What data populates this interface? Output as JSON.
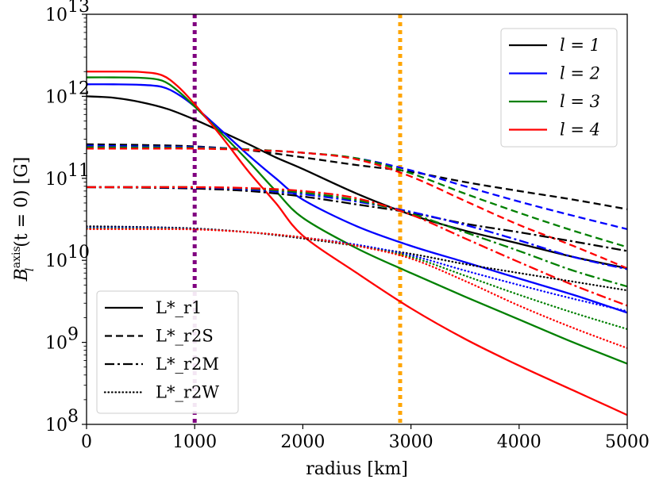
{
  "chart_data": {
    "type": "line",
    "title": "",
    "xlabel": "radius [km]",
    "ylabel": "B_l^axis(t = 0) [G]",
    "ylabel_parts": {
      "base": "B",
      "sub": "l",
      "sup": "axis",
      "rest": "(t = 0) [G]"
    },
    "xscale": "linear",
    "yscale": "log",
    "xlim": [
      0,
      5000
    ],
    "ylim": [
      100000000.0,
      10000000000000.0
    ],
    "x_ticks": [
      0,
      1000,
      2000,
      3000,
      4000,
      5000
    ],
    "x_tick_labels": [
      "0",
      "1000",
      "2000",
      "3000",
      "4000",
      "5000"
    ],
    "y_ticks": [
      8,
      9,
      10,
      11,
      12,
      13
    ],
    "y_tick_labels": [
      {
        "base": "10",
        "exp": "8"
      },
      {
        "base": "10",
        "exp": "9"
      },
      {
        "base": "10",
        "exp": "10"
      },
      {
        "base": "10",
        "exp": "11"
      },
      {
        "base": "10",
        "exp": "12"
      },
      {
        "base": "10",
        "exp": "13"
      }
    ],
    "vlines": [
      {
        "x": 1000,
        "color": "#800080",
        "style": "dotted"
      },
      {
        "x": 2900,
        "color": "#ffa500",
        "style": "dotted"
      }
    ],
    "legend_l": {
      "position": "upper right",
      "entries": [
        {
          "label": "l = 1",
          "color": "#000000"
        },
        {
          "label": "l = 2",
          "color": "#0000ff"
        },
        {
          "label": "l = 3",
          "color": "#008000"
        },
        {
          "label": "l = 4",
          "color": "#ff0000"
        }
      ]
    },
    "legend_models": {
      "position": "lower left",
      "entries": [
        {
          "label": "L*_r1",
          "style": "solid"
        },
        {
          "label": "L*_r2S",
          "style": "dashed"
        },
        {
          "label": "L*_r2M",
          "style": "dashdot"
        },
        {
          "label": "L*_r2W",
          "style": "dotted"
        }
      ]
    },
    "series": [
      {
        "name": "L*_r1 l=1",
        "model": "L*_r1",
        "l": 1,
        "color": "#000000",
        "style": "solid",
        "x": [
          0,
          250,
          500,
          750,
          1000,
          1250,
          1500,
          1750,
          2000,
          2500,
          3000,
          3500,
          4000,
          4500,
          5000
        ],
        "y": [
          1000000000000.0,
          960000000000.0,
          850000000000.0,
          700000000000.0,
          520000000000.0,
          370000000000.0,
          260000000000.0,
          180000000000.0,
          130000000000.0,
          65000000000.0,
          36000000000.0,
          23000000000.0,
          16000000000.0,
          11000000000.0,
          8000000000.0
        ]
      },
      {
        "name": "L*_r1 l=2",
        "model": "L*_r1",
        "l": 2,
        "color": "#0000ff",
        "style": "solid",
        "x": [
          0,
          250,
          500,
          700,
          850,
          1000,
          1250,
          1500,
          1750,
          2000,
          2500,
          3000,
          3500,
          4000,
          4500,
          5000
        ],
        "y": [
          1400000000000.0,
          1400000000000.0,
          1380000000000.0,
          1300000000000.0,
          1050000000000.0,
          750000000000.0,
          380000000000.0,
          190000000000.0,
          100000000000.0,
          55000000000.0,
          26000000000.0,
          15000000000.0,
          9500000000.0,
          6000000000.0,
          3800000000.0,
          2300000000.0
        ]
      },
      {
        "name": "L*_r1 l=3",
        "model": "L*_r1",
        "l": 3,
        "color": "#008000",
        "style": "solid",
        "x": [
          0,
          250,
          500,
          700,
          850,
          1000,
          1250,
          1500,
          1750,
          2000,
          2500,
          3000,
          3500,
          4000,
          4500,
          5000
        ],
        "y": [
          1700000000000.0,
          1700000000000.0,
          1680000000000.0,
          1550000000000.0,
          1150000000000.0,
          750000000000.0,
          350000000000.0,
          160000000000.0,
          70000000000.0,
          33000000000.0,
          14000000000.0,
          7000000000.0,
          3600000000.0,
          1900000000.0,
          1000000000.0,
          550000000.0
        ]
      },
      {
        "name": "L*_r1 l=4",
        "model": "L*_r1",
        "l": 4,
        "color": "#ff0000",
        "style": "solid",
        "x": [
          0,
          250,
          500,
          700,
          850,
          1000,
          1250,
          1500,
          1750,
          2000,
          2500,
          3000,
          3500,
          4000,
          4500,
          5000
        ],
        "y": [
          2000000000000.0,
          2000000000000.0,
          1980000000000.0,
          1800000000000.0,
          1300000000000.0,
          800000000000.0,
          320000000000.0,
          120000000000.0,
          50000000000.0,
          20000000000.0,
          7000000000.0,
          2600000000.0,
          1100000000.0,
          520000000.0,
          260000000.0,
          130000000.0
        ]
      },
      {
        "name": "L*_r2S l=1",
        "model": "L*_r2S",
        "l": 1,
        "color": "#000000",
        "style": "dashed",
        "x": [
          0,
          500,
          1000,
          1500,
          2000,
          2500,
          3000,
          3500,
          4000,
          4500,
          5000
        ],
        "y": [
          260000000000.0,
          255000000000.0,
          245000000000.0,
          220000000000.0,
          180000000000.0,
          145000000000.0,
          120000000000.0,
          90000000000.0,
          70000000000.0,
          55000000000.0,
          42000000000.0
        ]
      },
      {
        "name": "L*_r2S l=2",
        "model": "L*_r2S",
        "l": 2,
        "color": "#0000ff",
        "style": "dashed",
        "x": [
          0,
          500,
          1000,
          1500,
          2000,
          2500,
          3000,
          3500,
          4000,
          4500,
          5000
        ],
        "y": [
          250000000000.0,
          245000000000.0,
          240000000000.0,
          225000000000.0,
          205000000000.0,
          175000000000.0,
          125000000000.0,
          80000000000.0,
          52000000000.0,
          35000000000.0,
          24000000000.0
        ]
      },
      {
        "name": "L*_r2S l=3",
        "model": "L*_r2S",
        "l": 3,
        "color": "#008000",
        "style": "dashed",
        "x": [
          0,
          500,
          1000,
          1500,
          2000,
          2500,
          3000,
          3500,
          4000,
          4500,
          5000
        ],
        "y": [
          240000000000.0,
          238000000000.0,
          235000000000.0,
          225000000000.0,
          205000000000.0,
          175000000000.0,
          115000000000.0,
          65000000000.0,
          38000000000.0,
          23000000000.0,
          14500000000.0
        ]
      },
      {
        "name": "L*_r2S l=4",
        "model": "L*_r2S",
        "l": 4,
        "color": "#ff0000",
        "style": "dashed",
        "x": [
          0,
          500,
          1000,
          1500,
          2000,
          2500,
          3000,
          3500,
          4000,
          4500,
          5000
        ],
        "y": [
          230000000000.0,
          230000000000.0,
          230000000000.0,
          222000000000.0,
          205000000000.0,
          170000000000.0,
          105000000000.0,
          53000000000.0,
          27000000000.0,
          15000000000.0,
          8000000000.0
        ]
      },
      {
        "name": "L*_r2M l=1",
        "model": "L*_r2M",
        "l": 1,
        "color": "#000000",
        "style": "dashdot",
        "x": [
          0,
          500,
          1000,
          1500,
          2000,
          2500,
          3000,
          3500,
          4000,
          4500,
          5000
        ],
        "y": [
          78000000000.0,
          77000000000.0,
          75000000000.0,
          70000000000.0,
          60000000000.0,
          48000000000.0,
          38000000000.0,
          28000000000.0,
          22000000000.0,
          17000000000.0,
          13000000000.0
        ]
      },
      {
        "name": "L*_r2M l=2",
        "model": "L*_r2M",
        "l": 2,
        "color": "#0000ff",
        "style": "dashdot",
        "x": [
          0,
          500,
          1000,
          1500,
          2000,
          2500,
          3000,
          3500,
          4000,
          4500,
          5000
        ],
        "y": [
          78000000000.0,
          78000000000.0,
          77000000000.0,
          73000000000.0,
          64000000000.0,
          52000000000.0,
          39000000000.0,
          27000000000.0,
          17500000000.0,
          11000000000.0,
          7800000000.0
        ]
      },
      {
        "name": "L*_r2M l=3",
        "model": "L*_r2M",
        "l": 3,
        "color": "#008000",
        "style": "dashdot",
        "x": [
          0,
          500,
          1000,
          1500,
          2000,
          2500,
          3000,
          3500,
          4000,
          4500,
          5000
        ],
        "y": [
          78000000000.0,
          78000000000.0,
          78000000000.0,
          75000000000.0,
          67000000000.0,
          54000000000.0,
          37000000000.0,
          22000000000.0,
          13000000000.0,
          7500000000.0,
          4800000000.0
        ]
      },
      {
        "name": "L*_r2M l=4",
        "model": "L*_r2M",
        "l": 4,
        "color": "#ff0000",
        "style": "dashdot",
        "x": [
          0,
          500,
          1000,
          1500,
          2000,
          2500,
          3000,
          3500,
          4000,
          4500,
          5000
        ],
        "y": [
          78000000000.0,
          78000000000.0,
          78000000000.0,
          76000000000.0,
          70000000000.0,
          57000000000.0,
          36000000000.0,
          18500000000.0,
          9500000000.0,
          5000000000.0,
          2800000000.0
        ]
      },
      {
        "name": "L*_r2W l=1",
        "model": "L*_r2W",
        "l": 1,
        "color": "#000000",
        "style": "dotted",
        "x": [
          0,
          500,
          1000,
          1500,
          2000,
          2500,
          3000,
          3500,
          4000,
          4500,
          5000
        ],
        "y": [
          26000000000.0,
          25500000000.0,
          24500000000.0,
          22000000000.0,
          18500000000.0,
          15000000000.0,
          12000000000.0,
          9000000000.0,
          7000000000.0,
          5500000000.0,
          4300000000.0
        ]
      },
      {
        "name": "L*_r2W l=2",
        "model": "L*_r2W",
        "l": 2,
        "color": "#0000ff",
        "style": "dotted",
        "x": [
          0,
          500,
          1000,
          1500,
          2000,
          2500,
          3000,
          3500,
          4000,
          4500,
          5000
        ],
        "y": [
          25000000000.0,
          25000000000.0,
          24200000000.0,
          22000000000.0,
          19000000000.0,
          15500000000.0,
          11500000000.0,
          7500000000.0,
          5000000000.0,
          3400000000.0,
          2400000000.0
        ]
      },
      {
        "name": "L*_r2W l=3",
        "model": "L*_r2W",
        "l": 3,
        "color": "#008000",
        "style": "dotted",
        "x": [
          0,
          500,
          1000,
          1500,
          2000,
          2500,
          3000,
          3500,
          4000,
          4500,
          5000
        ],
        "y": [
          24500000000.0,
          24500000000.0,
          24000000000.0,
          22000000000.0,
          19000000000.0,
          15000000000.0,
          11000000000.0,
          6500000000.0,
          3800000000.0,
          2300000000.0,
          1450000000.0
        ]
      },
      {
        "name": "L*_r2W l=4",
        "model": "L*_r2W",
        "l": 4,
        "color": "#ff0000",
        "style": "dotted",
        "x": [
          0,
          500,
          1000,
          1500,
          2000,
          2500,
          3000,
          3500,
          4000,
          4500,
          5000
        ],
        "y": [
          24000000000.0,
          24000000000.0,
          23800000000.0,
          22000000000.0,
          19000000000.0,
          15000000000.0,
          10500000000.0,
          5600000000.0,
          2800000000.0,
          1500000000.0,
          850000000.0
        ]
      }
    ]
  }
}
